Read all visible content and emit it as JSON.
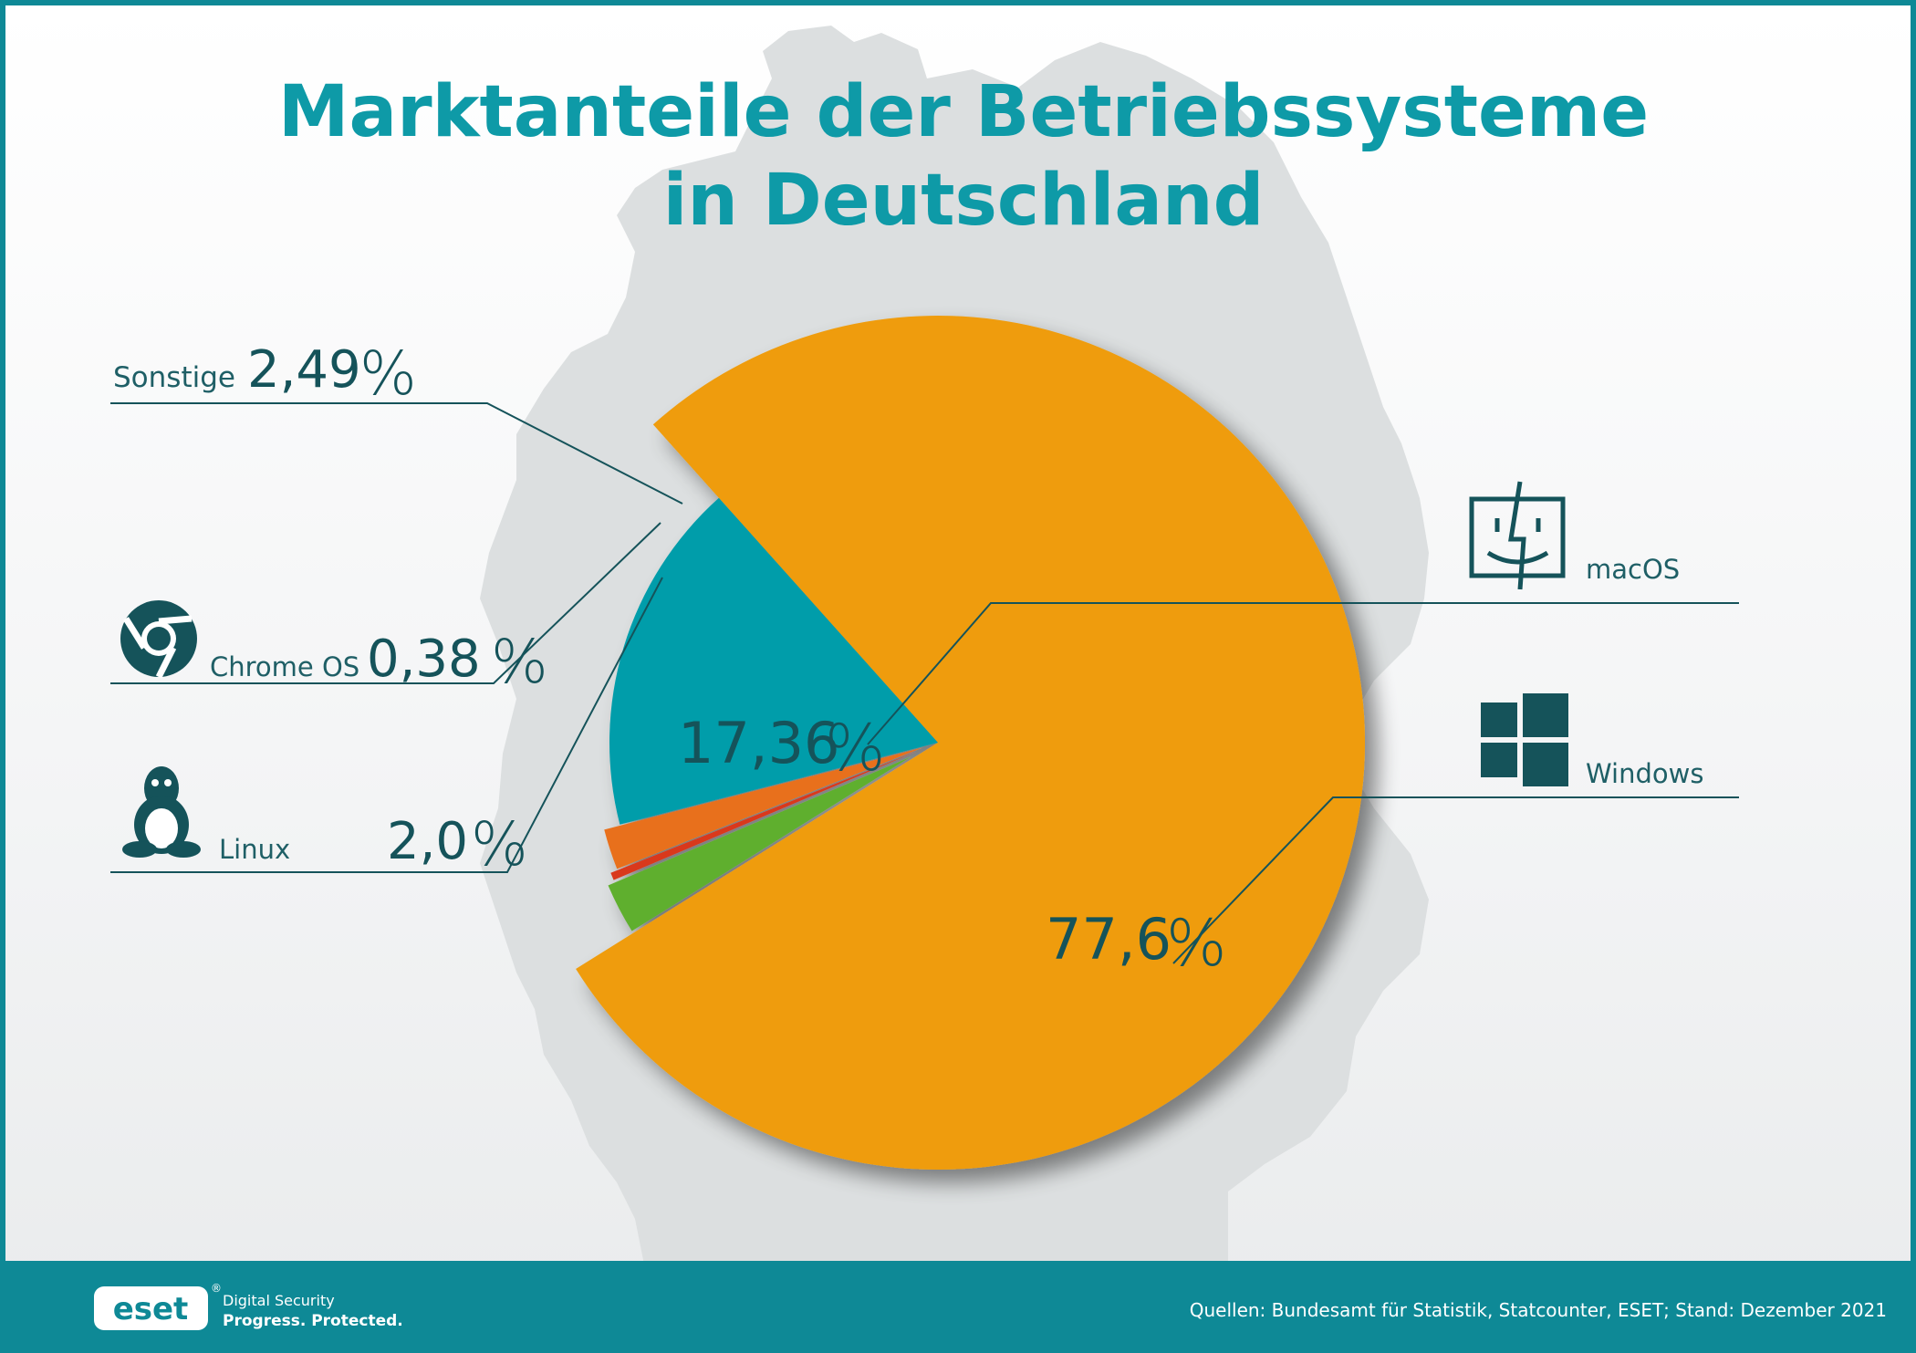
{
  "header": {
    "title_line1": "Marktanteile der Betriebssysteme",
    "title_line2": "in Deutschland"
  },
  "colors": {
    "frame": "#0e8996",
    "title": "#0e9aa7",
    "text": "#15535a",
    "map": "#dcdfe0",
    "windows": "#ef9c0a",
    "macos": "#009daa",
    "linux": "#e8701a",
    "chrome_os": "#d9381e",
    "sonstige": "#5faf2e"
  },
  "chart_data": {
    "type": "pie",
    "title": "Marktanteile der Betriebssysteme in Deutschland",
    "unit": "%",
    "slices": [
      {
        "name": "Windows",
        "value": 77.6,
        "label": "77,6",
        "color": "#ef9c0a",
        "icon": "windows-logo-icon"
      },
      {
        "name": "macOS",
        "value": 17.36,
        "label": "17,36",
        "color": "#009daa",
        "icon": "finder-face-icon"
      },
      {
        "name": "Linux",
        "value": 2.0,
        "label": "2,0",
        "color": "#e8701a",
        "icon": "tux-penguin-icon"
      },
      {
        "name": "Chrome OS",
        "value": 0.38,
        "label": "0,38",
        "color": "#d9381e",
        "icon": "chrome-logo-icon"
      },
      {
        "name": "Sonstige",
        "value": 2.49,
        "label": "2,49",
        "color": "#5faf2e"
      }
    ]
  },
  "legend": {
    "sonstige": {
      "name": "Sonstige",
      "value": "2,49",
      "pct": "%"
    },
    "chrome_os": {
      "name": "Chrome OS",
      "value": "0,38",
      "pct": "%"
    },
    "linux": {
      "name": "Linux",
      "value": "2,0",
      "pct": "%"
    },
    "macos": {
      "name": "macOS",
      "value": "17,36",
      "pct": "%"
    },
    "windows": {
      "name": "Windows",
      "value": "77,6",
      "pct": "%"
    }
  },
  "footer": {
    "brand": "eset",
    "registered": "®",
    "tagline1": "Digital Security",
    "tagline2": "Progress. Protected.",
    "source": "Quellen: Bundesamt für Statistik, Statcounter, ESET; Stand: Dezember 2021"
  }
}
